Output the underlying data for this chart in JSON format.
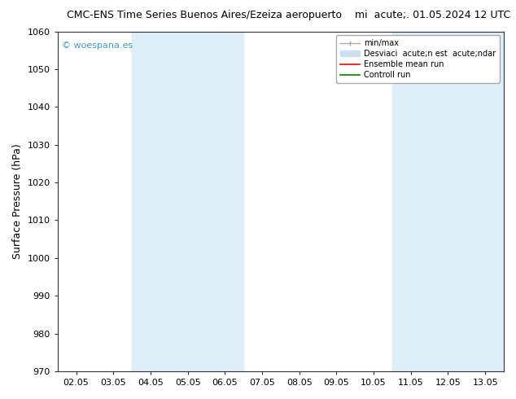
{
  "title_left": "CMC-ENS Time Series Buenos Aires/Ezeiza aeropuerto",
  "title_right": "mi  acute;. 01.05.2024 12 UTC",
  "ylabel": "Surface Pressure (hPa)",
  "ylim": [
    970,
    1060
  ],
  "yticks": [
    970,
    980,
    990,
    1000,
    1010,
    1020,
    1030,
    1040,
    1050,
    1060
  ],
  "xtick_labels": [
    "02.05",
    "03.05",
    "04.05",
    "05.05",
    "06.05",
    "07.05",
    "08.05",
    "09.05",
    "10.05",
    "11.05",
    "12.05",
    "13.05"
  ],
  "xlim": [
    0,
    11
  ],
  "shaded_bands": [
    {
      "xmin": 2,
      "xmax": 4,
      "color": "#ddeef8"
    },
    {
      "xmin": 9,
      "xmax": 11,
      "color": "#ddeef8"
    }
  ],
  "watermark": "© woespana.es",
  "watermark_color": "#4499cc",
  "legend_label_1": "min/max",
  "legend_label_2": "Desviaci  acute;n est  acute;ndar",
  "legend_label_3": "Ensemble mean run",
  "legend_label_4": "Controll run",
  "legend_color_1": "#aaaaaa",
  "legend_color_2": "#cce0f0",
  "legend_color_3": "red",
  "legend_color_4": "green",
  "bg_color": "#ffffff",
  "title_fontsize": 9,
  "tick_fontsize": 8,
  "ylabel_fontsize": 9,
  "legend_fontsize": 7
}
